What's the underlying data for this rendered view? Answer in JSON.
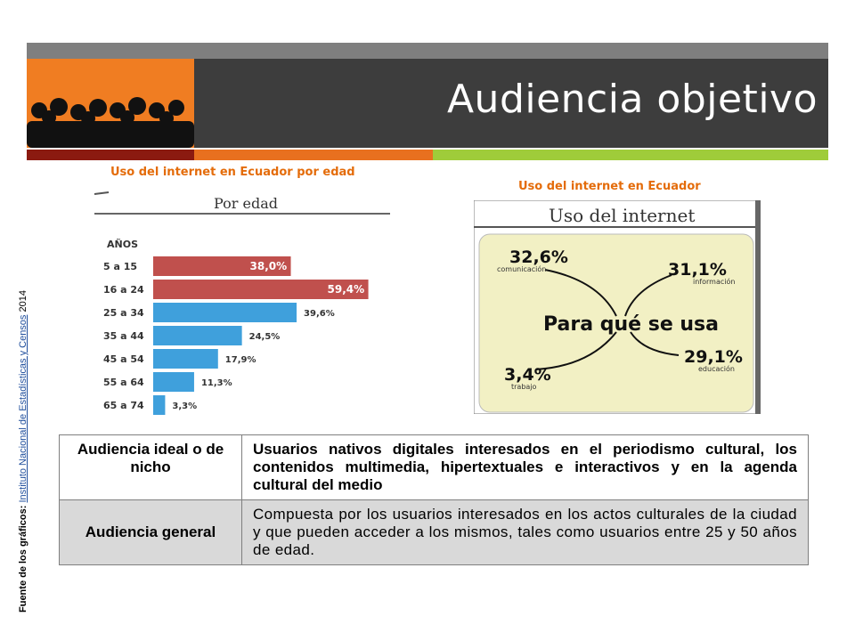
{
  "slide": {
    "title": "Audiencia objetivo",
    "caption_left": "Uso del internet en Ecuador por edad",
    "caption_right": "Uso del internet en Ecuador",
    "source_label": "Fuente de los gráficos:",
    "source_link": "Instituto Nacional de Estadísticas y Censos",
    "source_year": "2014",
    "colors": {
      "orange": "#f07d22",
      "dark": "#3d3d3d",
      "caption": "#e46c0a"
    }
  },
  "table": {
    "rows": [
      {
        "key": "Audiencia ideal o de nicho",
        "value": "Usuarios nativos digitales interesados en el periodismo cultural, los contenidos multimedia, hipertextuales e interactivos y en la agenda cultural del medio"
      },
      {
        "key": "Audiencia general",
        "value": "Compuesta por los usuarios interesados en los actos culturales de la ciudad y que pueden acceder a los mismos, tales como usuarios entre 25 y 50 años de edad."
      }
    ]
  },
  "chart_data": [
    {
      "type": "bar",
      "title": "Por edad",
      "category_header": "AÑOS",
      "categories": [
        "5 a 15",
        "16 a 24",
        "25 a 34",
        "35 a 44",
        "45 a 54",
        "55 a 64",
        "65 a 74"
      ],
      "values": [
        38.0,
        59.4,
        39.6,
        24.5,
        17.9,
        11.3,
        3.3
      ],
      "labels": [
        "38,0%",
        "59,4%",
        "39,6%",
        "24,5%",
        "17,9%",
        "11,3%",
        "3,3%"
      ],
      "colors": [
        "#c0504d",
        "#c0504d",
        "#3fa0dc",
        "#3fa0dc",
        "#3fa0dc",
        "#3fa0dc",
        "#3fa0dc"
      ],
      "xlim": [
        0,
        60
      ]
    },
    {
      "type": "table",
      "title": "Uso del internet",
      "center": "Para qué se usa",
      "items": [
        {
          "value": "32,6%",
          "label": "comunicación"
        },
        {
          "value": "31,1%",
          "label": "información"
        },
        {
          "value": "3,4%",
          "label": "trabajo"
        },
        {
          "value": "29,1%",
          "label": "educación"
        }
      ]
    }
  ]
}
